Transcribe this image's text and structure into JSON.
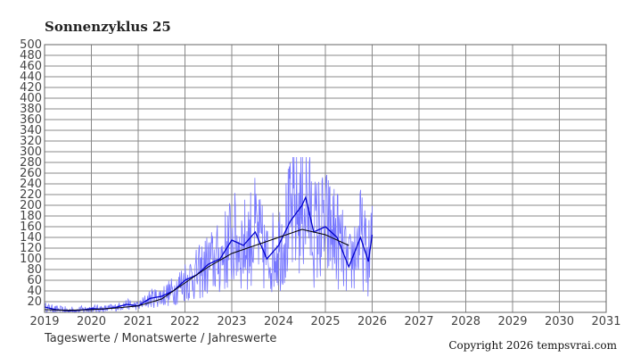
{
  "chart_data": {
    "type": "line",
    "title": "Sonnenzyklus 25",
    "legend_text": "Tageswerte / Monatswerte / Jahreswerte",
    "copyright": "Copyright 2026 tempsvrai.com",
    "xlim": [
      2019,
      2031
    ],
    "ylim": [
      0,
      500
    ],
    "x_ticks": [
      "2019",
      "2020",
      "2021",
      "2022",
      "2023",
      "2024",
      "2025",
      "2026",
      "2027",
      "2028",
      "2029",
      "2030",
      "2031"
    ],
    "y_ticks": [
      "20",
      "40",
      "60",
      "80",
      "100",
      "120",
      "140",
      "160",
      "180",
      "200",
      "220",
      "240",
      "260",
      "280",
      "300",
      "320",
      "340",
      "360",
      "380",
      "400",
      "420",
      "440",
      "460",
      "480",
      "500"
    ],
    "grid": true,
    "colors": {
      "daily": "#7777ff",
      "monthly": "#0000cc",
      "yearly": "#000000",
      "grid": "#888888"
    },
    "series": [
      {
        "key": "monthly",
        "x": [
          2019.0,
          2019.25,
          2019.5,
          2019.75,
          2020.0,
          2020.25,
          2020.5,
          2020.75,
          2021.0,
          2021.25,
          2021.5,
          2021.75,
          2022.0,
          2022.25,
          2022.5,
          2022.75,
          2023.0,
          2023.25,
          2023.5,
          2023.75,
          2024.0,
          2024.25,
          2024.5,
          2024.58,
          2024.75,
          2025.0,
          2025.25,
          2025.5,
          2025.75,
          2025.92,
          2026.0
        ],
        "y": [
          10,
          5,
          3,
          4,
          7,
          6,
          9,
          15,
          12,
          26,
          30,
          40,
          60,
          70,
          90,
          100,
          135,
          125,
          150,
          100,
          125,
          170,
          200,
          215,
          150,
          160,
          140,
          85,
          140,
          95,
          145
        ]
      },
      {
        "key": "yearly",
        "x": [
          2019.0,
          2019.5,
          2020.0,
          2020.5,
          2021.0,
          2021.5,
          2022.0,
          2022.5,
          2023.0,
          2023.5,
          2024.0,
          2024.5,
          2025.0,
          2025.5
        ],
        "y": [
          5,
          4,
          5,
          8,
          12,
          25,
          55,
          85,
          110,
          125,
          140,
          155,
          145,
          125
        ]
      }
    ],
    "daily_range": {
      "x_start": 2019.0,
      "x_end": 2026.0
    }
  }
}
